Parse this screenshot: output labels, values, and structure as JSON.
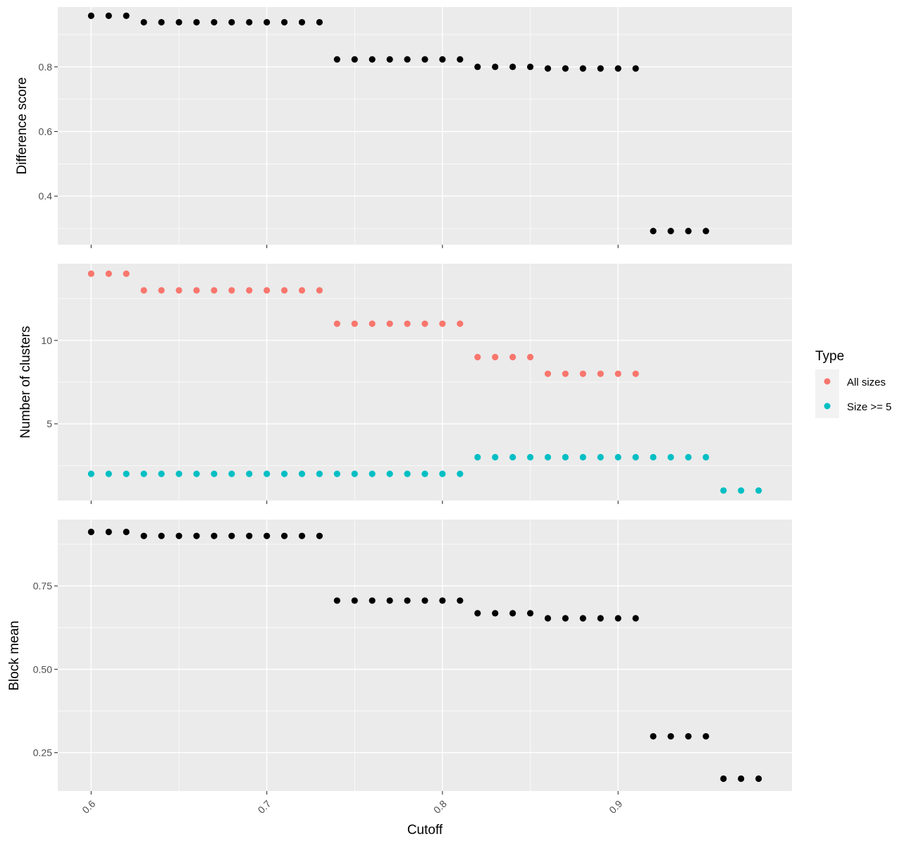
{
  "chart_data": [
    {
      "type": "scatter",
      "ylabel": "Difference score",
      "ylim": [
        0.25,
        0.985
      ],
      "yticks": [
        0.4,
        0.6,
        0.8
      ],
      "ytick_labels": [
        "0.4",
        "0.6",
        "0.8"
      ],
      "grid": true,
      "series": [
        {
          "color": "#000000",
          "x": [
            0.6,
            0.61,
            0.62,
            0.63,
            0.64,
            0.65,
            0.66,
            0.67,
            0.68,
            0.69,
            0.7,
            0.71,
            0.72,
            0.73,
            0.74,
            0.75,
            0.76,
            0.77,
            0.78,
            0.79,
            0.8,
            0.81,
            0.82,
            0.83,
            0.84,
            0.85,
            0.86,
            0.87,
            0.88,
            0.89,
            0.9,
            0.91,
            0.92,
            0.93,
            0.94,
            0.95
          ],
          "y": [
            0.958,
            0.958,
            0.958,
            0.938,
            0.938,
            0.938,
            0.938,
            0.938,
            0.938,
            0.938,
            0.938,
            0.938,
            0.938,
            0.938,
            0.823,
            0.823,
            0.823,
            0.823,
            0.823,
            0.823,
            0.823,
            0.823,
            0.8,
            0.8,
            0.8,
            0.8,
            0.795,
            0.795,
            0.795,
            0.795,
            0.795,
            0.795,
            0.292,
            0.292,
            0.292,
            0.292
          ]
        }
      ]
    },
    {
      "type": "scatter",
      "ylabel": "Number of clusters",
      "ylim": [
        0.4,
        14.6
      ],
      "yticks": [
        5,
        10
      ],
      "ytick_labels": [
        "5",
        "10"
      ],
      "grid": true,
      "legend": {
        "title": "Type",
        "position": "right"
      },
      "series": [
        {
          "name": "All sizes",
          "color": "#F8766D",
          "x": [
            0.6,
            0.61,
            0.62,
            0.63,
            0.64,
            0.65,
            0.66,
            0.67,
            0.68,
            0.69,
            0.7,
            0.71,
            0.72,
            0.73,
            0.74,
            0.75,
            0.76,
            0.77,
            0.78,
            0.79,
            0.8,
            0.81,
            0.82,
            0.83,
            0.84,
            0.85,
            0.86,
            0.87,
            0.88,
            0.89,
            0.9,
            0.91
          ],
          "y": [
            14,
            14,
            14,
            13,
            13,
            13,
            13,
            13,
            13,
            13,
            13,
            13,
            13,
            13,
            11,
            11,
            11,
            11,
            11,
            11,
            11,
            11,
            9,
            9,
            9,
            9,
            8,
            8,
            8,
            8,
            8,
            8
          ]
        },
        {
          "name": "Size >= 5",
          "color": "#00BFC4",
          "x": [
            0.6,
            0.61,
            0.62,
            0.63,
            0.64,
            0.65,
            0.66,
            0.67,
            0.68,
            0.69,
            0.7,
            0.71,
            0.72,
            0.73,
            0.74,
            0.75,
            0.76,
            0.77,
            0.78,
            0.79,
            0.8,
            0.81,
            0.82,
            0.83,
            0.84,
            0.85,
            0.86,
            0.87,
            0.88,
            0.89,
            0.9,
            0.91,
            0.92,
            0.93,
            0.94,
            0.95,
            0.96,
            0.97,
            0.98
          ],
          "y": [
            2,
            2,
            2,
            2,
            2,
            2,
            2,
            2,
            2,
            2,
            2,
            2,
            2,
            2,
            2,
            2,
            2,
            2,
            2,
            2,
            2,
            2,
            3,
            3,
            3,
            3,
            3,
            3,
            3,
            3,
            3,
            3,
            3,
            3,
            3,
            3,
            1,
            1,
            1
          ]
        }
      ]
    },
    {
      "type": "scatter",
      "ylabel": "Block mean",
      "xlabel": "Cutoff",
      "ylim": [
        0.135,
        0.949
      ],
      "yticks": [
        0.25,
        0.5,
        0.75
      ],
      "ytick_labels": [
        "0.25",
        "0.50",
        "0.75"
      ],
      "xlim": [
        0.581,
        0.999
      ],
      "xticks": [
        0.6,
        0.7,
        0.8,
        0.9
      ],
      "xtick_labels": [
        "0.6",
        "0.7",
        "0.8",
        "0.9"
      ],
      "grid": true,
      "series": [
        {
          "color": "#000000",
          "x": [
            0.6,
            0.61,
            0.62,
            0.63,
            0.64,
            0.65,
            0.66,
            0.67,
            0.68,
            0.69,
            0.7,
            0.71,
            0.72,
            0.73,
            0.74,
            0.75,
            0.76,
            0.77,
            0.78,
            0.79,
            0.8,
            0.81,
            0.82,
            0.83,
            0.84,
            0.85,
            0.86,
            0.87,
            0.88,
            0.89,
            0.9,
            0.91,
            0.92,
            0.93,
            0.94,
            0.95,
            0.96,
            0.97,
            0.98
          ],
          "y": [
            0.912,
            0.912,
            0.912,
            0.9,
            0.9,
            0.9,
            0.9,
            0.9,
            0.9,
            0.9,
            0.9,
            0.9,
            0.9,
            0.9,
            0.706,
            0.706,
            0.706,
            0.706,
            0.706,
            0.706,
            0.706,
            0.706,
            0.668,
            0.668,
            0.668,
            0.668,
            0.653,
            0.653,
            0.653,
            0.653,
            0.653,
            0.653,
            0.299,
            0.299,
            0.299,
            0.299,
            0.172,
            0.172,
            0.172
          ]
        }
      ]
    }
  ]
}
